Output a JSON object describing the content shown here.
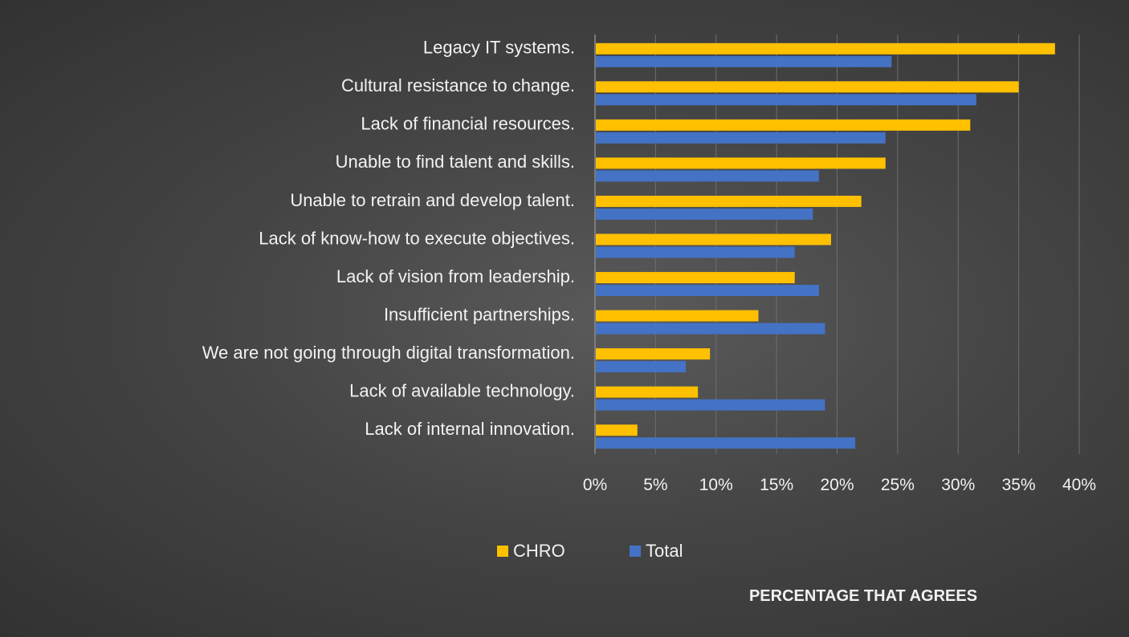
{
  "chart_data": {
    "type": "bar",
    "orientation": "horizontal",
    "categories": [
      "Legacy IT systems.",
      "Cultural resistance to change.",
      "Lack of financial resources.",
      "Unable to find talent and skills.",
      "Unable to retrain and develop talent.",
      "Lack of know-how to execute objectives.",
      "Lack of vision from leadership.",
      "Insufficient partnerships.",
      "We are not going through digital transformation.",
      "Lack of available technology.",
      "Lack of internal innovation."
    ],
    "series": [
      {
        "name": "CHRO",
        "color": "#ffc000",
        "values": [
          38,
          35,
          31,
          24,
          22,
          19.5,
          16.5,
          13.5,
          9.5,
          8.5,
          3.5
        ]
      },
      {
        "name": "Total",
        "color": "#4472c4",
        "values": [
          24.5,
          31.5,
          24,
          18.5,
          18,
          16.5,
          18.5,
          19,
          7.5,
          19,
          21.5
        ]
      }
    ],
    "xlim": [
      0,
      40
    ],
    "xticks": [
      0,
      5,
      10,
      15,
      20,
      25,
      30,
      35,
      40
    ],
    "xtick_labels": [
      "0%",
      "5%",
      "10%",
      "15%",
      "20%",
      "25%",
      "30%",
      "35%",
      "40%"
    ],
    "xlabel": "PERCENTAGE THAT AGREES",
    "ylabel": "",
    "title": "",
    "grid": "vertical",
    "legend": "bottom-center",
    "gridline_color": "#6e6e6e",
    "axis_color": "#8a8a8a"
  }
}
